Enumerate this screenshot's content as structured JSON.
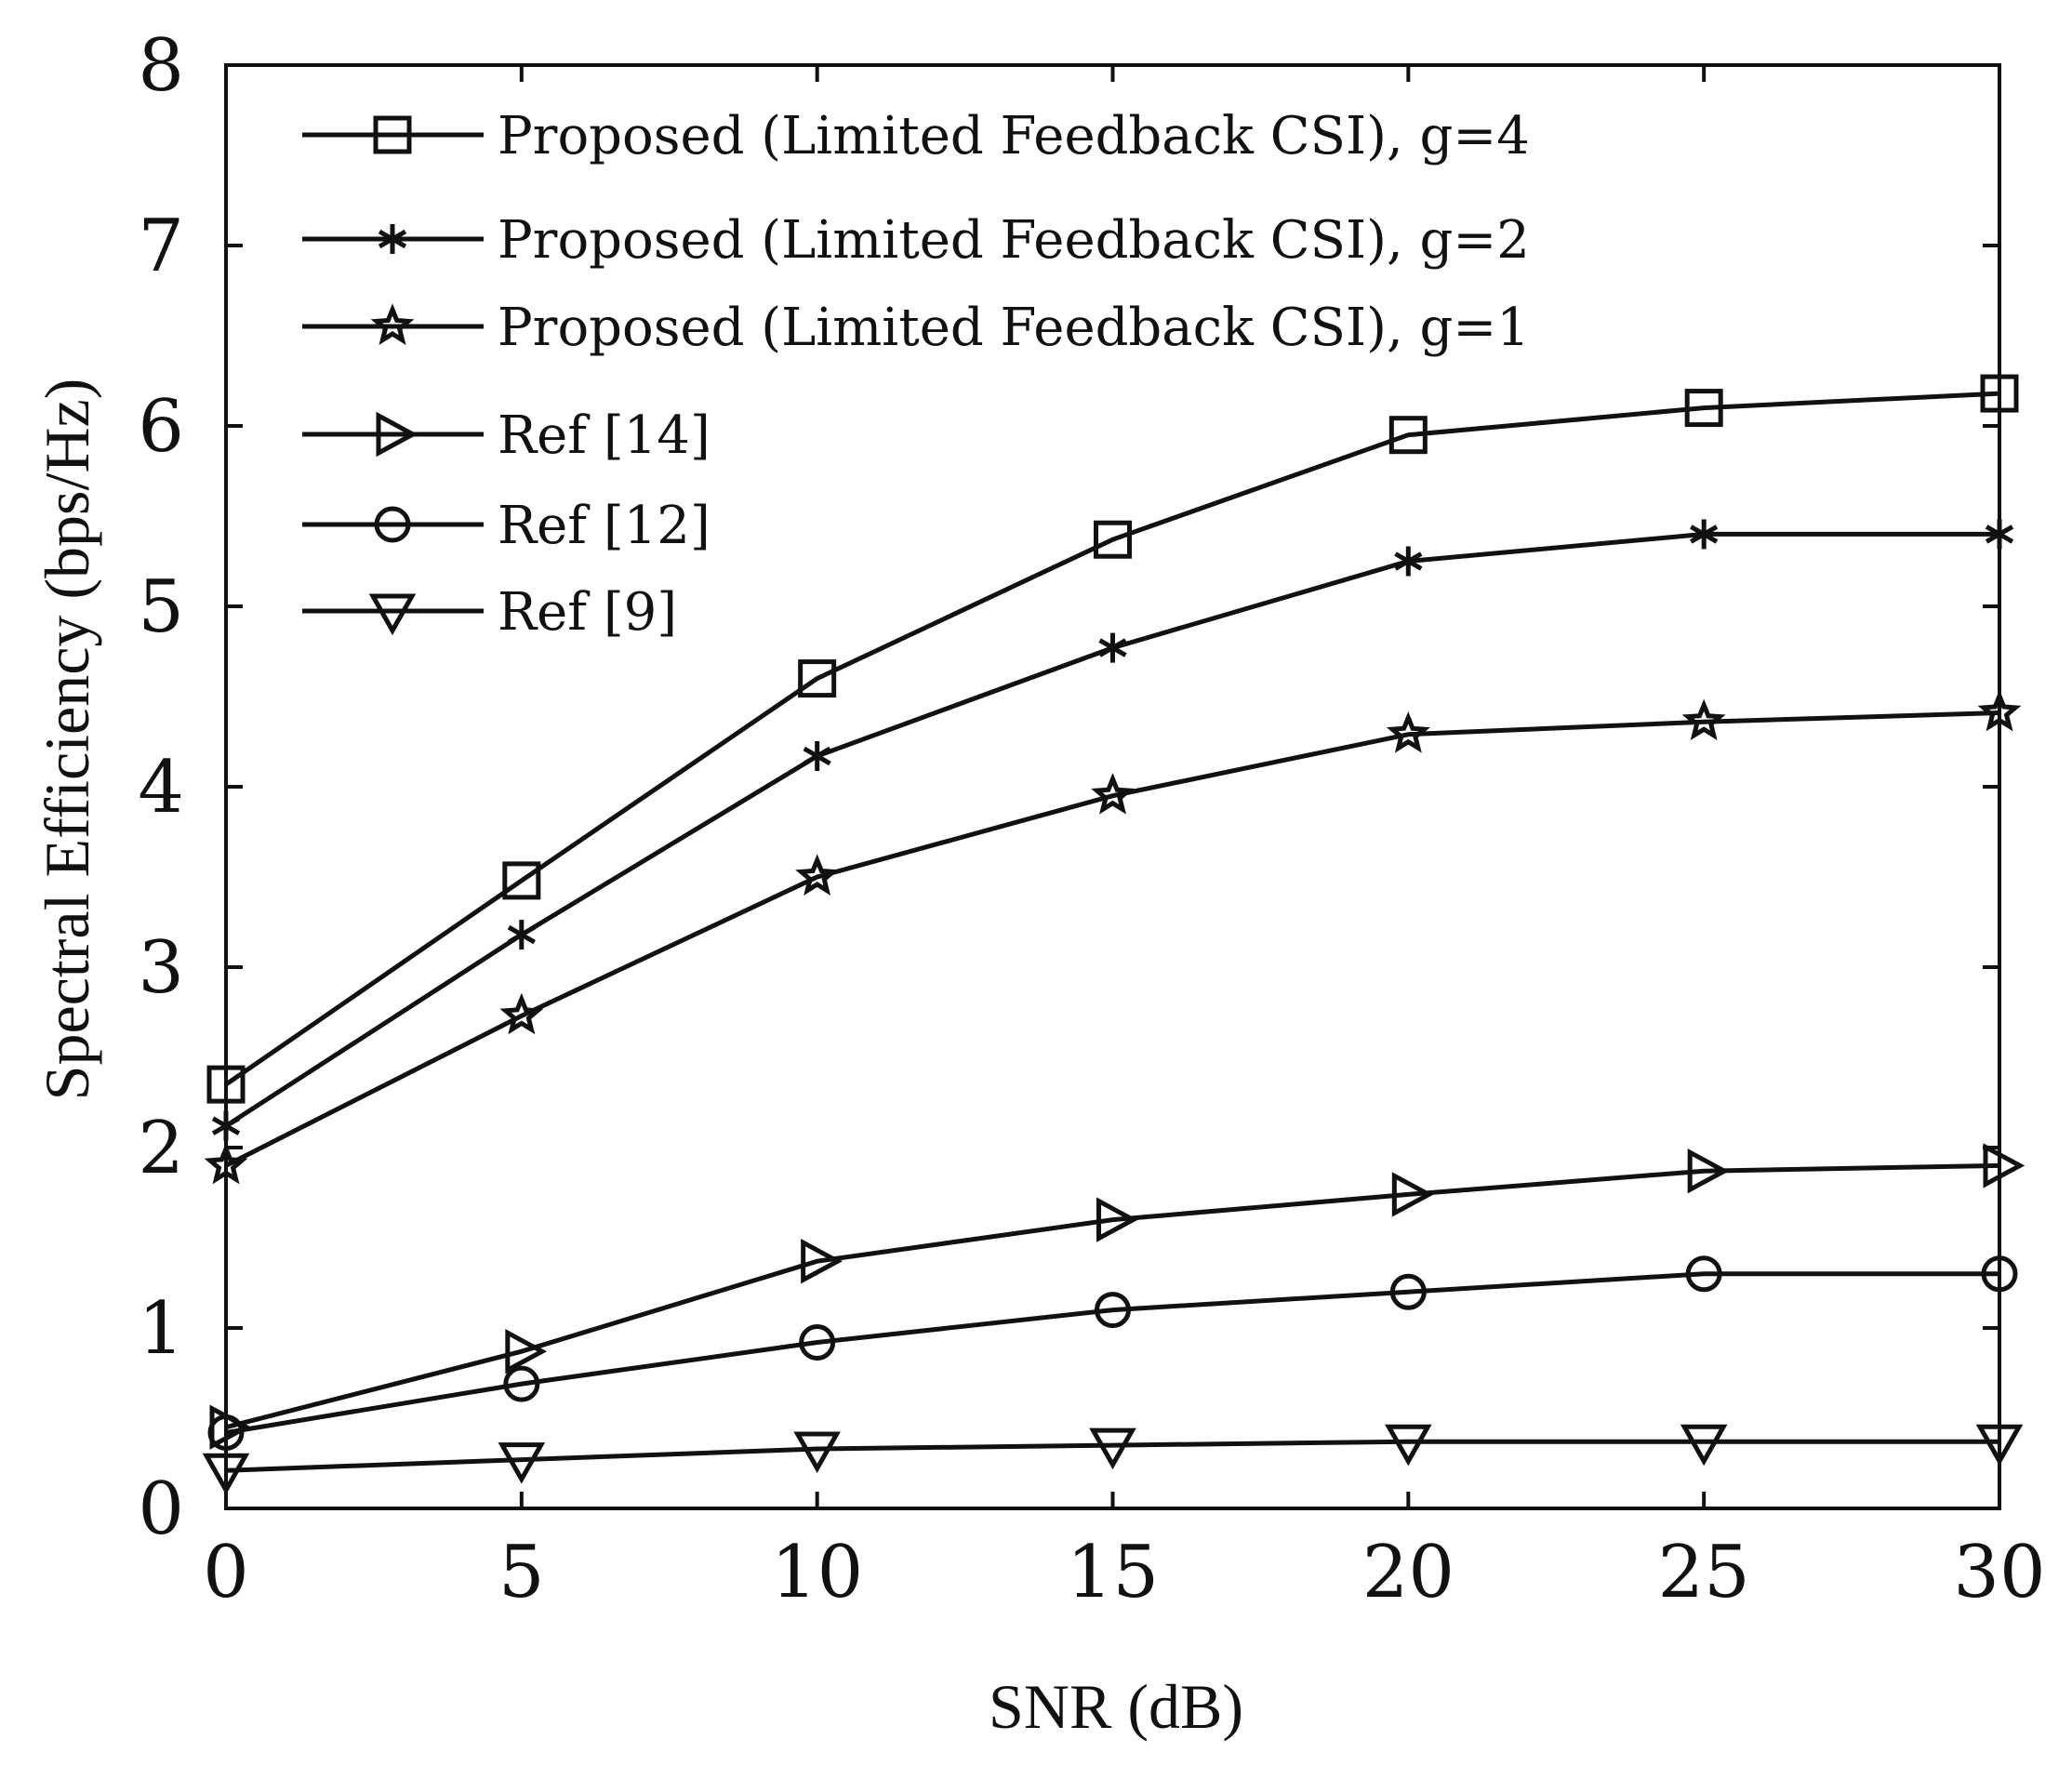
{
  "chart_data": {
    "type": "line",
    "title": "",
    "xlabel": "SNR (dB)",
    "ylabel": "Spectral Efficiency (bps/Hz)",
    "xlim": [
      0,
      30
    ],
    "ylim": [
      0,
      8
    ],
    "xticks": [
      0,
      5,
      10,
      15,
      20,
      25,
      30
    ],
    "yticks": [
      0,
      1,
      2,
      3,
      4,
      5,
      6,
      7,
      8
    ],
    "grid": false,
    "legend_position": "top-left",
    "x": [
      0,
      5,
      10,
      15,
      20,
      25,
      30
    ],
    "series": [
      {
        "name": "Proposed (Limited Feedback CSI), g=4",
        "marker": "square",
        "values": [
          2.35,
          3.48,
          4.6,
          5.37,
          5.95,
          6.1,
          6.18
        ]
      },
      {
        "name": "Proposed (Limited Feedback CSI), g=2",
        "marker": "asterisk",
        "values": [
          2.12,
          3.18,
          4.17,
          4.77,
          5.25,
          5.4,
          5.4
        ]
      },
      {
        "name": "Proposed (Limited Feedback CSI), g=1",
        "marker": "star",
        "values": [
          1.9,
          2.73,
          3.5,
          3.95,
          4.29,
          4.36,
          4.41
        ]
      },
      {
        "name": "Ref [14]",
        "marker": "triangle-right",
        "values": [
          0.45,
          0.87,
          1.37,
          1.6,
          1.74,
          1.87,
          1.9
        ]
      },
      {
        "name": "Ref [12]",
        "marker": "circle",
        "values": [
          0.42,
          0.69,
          0.92,
          1.1,
          1.2,
          1.3,
          1.3
        ]
      },
      {
        "name": "Ref [9]",
        "marker": "triangle-down",
        "values": [
          0.21,
          0.27,
          0.33,
          0.35,
          0.37,
          0.37,
          0.37
        ]
      }
    ]
  }
}
